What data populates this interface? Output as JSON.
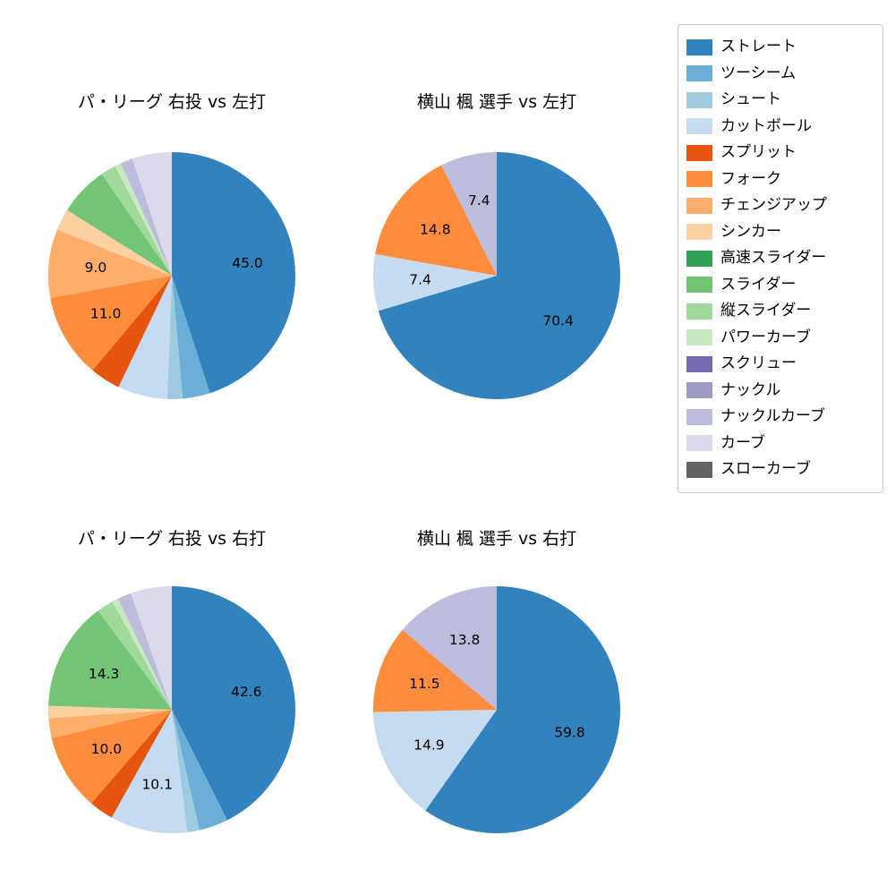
{
  "legend": {
    "position": "upper-right",
    "items": [
      {
        "name": "ストレート",
        "color": "#3182bd"
      },
      {
        "name": "ツーシーム",
        "color": "#6baed6"
      },
      {
        "name": "シュート",
        "color": "#9ecae1"
      },
      {
        "name": "カットボール",
        "color": "#c6dbef"
      },
      {
        "name": "スプリット",
        "color": "#e6550d"
      },
      {
        "name": "フォーク",
        "color": "#fd8d3c"
      },
      {
        "name": "チェンジアップ",
        "color": "#fdae6b"
      },
      {
        "name": "シンカー",
        "color": "#fdd0a2"
      },
      {
        "name": "高速スライダー",
        "color": "#31a354"
      },
      {
        "name": "スライダー",
        "color": "#74c476"
      },
      {
        "name": "縦スライダー",
        "color": "#a1d99b"
      },
      {
        "name": "パワーカーブ",
        "color": "#c7e9c0"
      },
      {
        "name": "スクリュー",
        "color": "#756bb1"
      },
      {
        "name": "ナックル",
        "color": "#9e9ac8"
      },
      {
        "name": "ナックルカーブ",
        "color": "#bcbddc"
      },
      {
        "name": "カーブ",
        "color": "#dadaeb"
      },
      {
        "name": "スローカーブ",
        "color": "#636363"
      }
    ]
  },
  "chart_data": [
    {
      "type": "pie",
      "title": "パ・リーグ 右投 vs 左打",
      "direction": "clockwise",
      "start_angle": "top",
      "label_distance": 0.62,
      "slices": [
        {
          "name": "ストレート",
          "value": 45.0,
          "label": "45.0"
        },
        {
          "name": "ツーシーム",
          "value": 3.6,
          "label": ""
        },
        {
          "name": "シュート",
          "value": 2.0,
          "label": ""
        },
        {
          "name": "カットボール",
          "value": 6.5,
          "label": ""
        },
        {
          "name": "スプリット",
          "value": 4.0,
          "label": ""
        },
        {
          "name": "フォーク",
          "value": 11.0,
          "label": "11.0"
        },
        {
          "name": "チェンジアップ",
          "value": 9.0,
          "label": "9.0"
        },
        {
          "name": "シンカー",
          "value": 2.8,
          "label": ""
        },
        {
          "name": "スライダー",
          "value": 6.5,
          "label": ""
        },
        {
          "name": "縦スライダー",
          "value": 2.0,
          "label": ""
        },
        {
          "name": "パワーカーブ",
          "value": 0.8,
          "label": ""
        },
        {
          "name": "ナックルカーブ",
          "value": 1.6,
          "label": ""
        },
        {
          "name": "カーブ",
          "value": 5.2,
          "label": ""
        }
      ]
    },
    {
      "type": "pie",
      "title": "横山 楓 選手 vs 左打",
      "direction": "clockwise",
      "start_angle": "top",
      "label_distance": 0.62,
      "slices": [
        {
          "name": "ストレート",
          "value": 70.4,
          "label": "70.4"
        },
        {
          "name": "カットボール",
          "value": 7.4,
          "label": "7.4"
        },
        {
          "name": "フォーク",
          "value": 14.8,
          "label": "14.8"
        },
        {
          "name": "ナックルカーブ",
          "value": 7.4,
          "label": "7.4"
        }
      ]
    },
    {
      "type": "pie",
      "title": "パ・リーグ 右投 vs 右打",
      "direction": "clockwise",
      "start_angle": "top",
      "label_distance": 0.62,
      "slices": [
        {
          "name": "ストレート",
          "value": 42.6,
          "label": "42.6"
        },
        {
          "name": "ツーシーム",
          "value": 3.8,
          "label": ""
        },
        {
          "name": "シュート",
          "value": 1.6,
          "label": ""
        },
        {
          "name": "カットボール",
          "value": 10.1,
          "label": "10.1"
        },
        {
          "name": "スプリット",
          "value": 3.2,
          "label": ""
        },
        {
          "name": "フォーク",
          "value": 10.0,
          "label": "10.0"
        },
        {
          "name": "チェンジアップ",
          "value": 2.6,
          "label": ""
        },
        {
          "name": "シンカー",
          "value": 1.6,
          "label": ""
        },
        {
          "name": "スライダー",
          "value": 14.3,
          "label": "14.3"
        },
        {
          "name": "縦スライダー",
          "value": 2.2,
          "label": ""
        },
        {
          "name": "パワーカーブ",
          "value": 0.8,
          "label": ""
        },
        {
          "name": "ナックルカーブ",
          "value": 1.8,
          "label": ""
        },
        {
          "name": "カーブ",
          "value": 5.4,
          "label": ""
        }
      ]
    },
    {
      "type": "pie",
      "title": "横山 楓 選手 vs 右打",
      "direction": "clockwise",
      "start_angle": "top",
      "label_distance": 0.62,
      "slices": [
        {
          "name": "ストレート",
          "value": 59.8,
          "label": "59.8"
        },
        {
          "name": "カットボール",
          "value": 14.9,
          "label": "14.9"
        },
        {
          "name": "フォーク",
          "value": 11.5,
          "label": "11.5"
        },
        {
          "name": "ナックルカーブ",
          "value": 13.8,
          "label": "13.8"
        }
      ]
    }
  ]
}
